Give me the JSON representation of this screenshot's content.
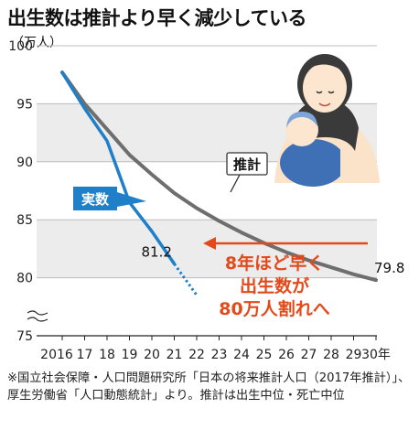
{
  "title": "出生数は推計より早く減少している",
  "unit": "（万人）",
  "chart_data": {
    "type": "line",
    "x_labels": [
      "2016",
      "17",
      "18",
      "19",
      "20",
      "21",
      "22",
      "23",
      "24",
      "25",
      "26",
      "27",
      "28",
      "29",
      "30年"
    ],
    "ylim": [
      75,
      100
    ],
    "y_ticks": [
      75,
      80,
      85,
      90,
      95,
      100
    ],
    "grid": true,
    "series": [
      {
        "name": "推計",
        "color": "#6e6e6e",
        "x": [
          "2016",
          "17",
          "18",
          "19",
          "20",
          "21",
          "22",
          "23",
          "24",
          "25",
          "26",
          "27",
          "28",
          "29",
          "30年"
        ],
        "values": [
          97.7,
          95.0,
          92.8,
          90.6,
          88.9,
          87.3,
          86.0,
          84.9,
          83.9,
          83.0,
          82.2,
          81.5,
          80.9,
          80.3,
          79.8
        ]
      },
      {
        "name": "実数",
        "color": "#1f7fc8",
        "x": [
          "2016",
          "17",
          "18",
          "19",
          "20",
          "21"
        ],
        "values": [
          97.7,
          94.6,
          91.8,
          86.5,
          84.0,
          81.2
        ]
      }
    ],
    "projection": {
      "x": [
        "21",
        "22"
      ],
      "values": [
        81.2,
        78.5
      ],
      "color": "#1f7fc8",
      "style": "dotted"
    },
    "data_labels": {
      "actual_end": "81.2",
      "estimate_end": "79.8"
    },
    "series_labels": {
      "estimate": "推計",
      "actual": "実数"
    },
    "annotation": {
      "lines": [
        "8年ほど早く",
        "出生数が",
        "80万人割れへ"
      ],
      "color": "#e24a1b"
    }
  },
  "source_note": "※国立社会保障・人口問題研究所「日本の将来推計人口（2017年推計）」、厚生労働省「人口動態統計」より。推計は出生中位・死亡中位"
}
